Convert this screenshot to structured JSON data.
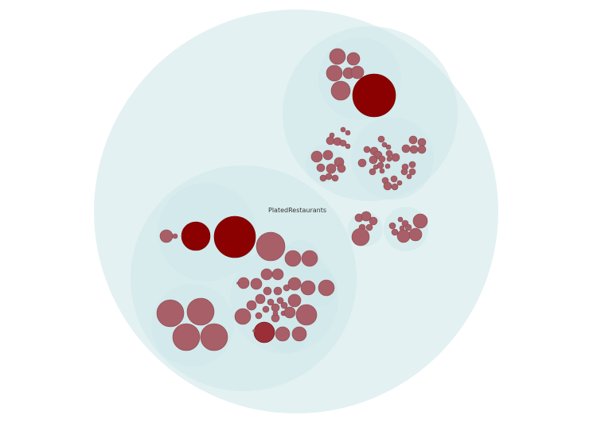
{
  "labels": {
    "plated_restaurants": "PlatedRestaurants"
  },
  "colors": {
    "root_fill": "#e3f1f2",
    "group_fill": "#cfe7ea",
    "leaf_fill": "#a85f67",
    "leaf_stroke": "#8c4650",
    "leaf_highlight": "#8b0000"
  }
}
